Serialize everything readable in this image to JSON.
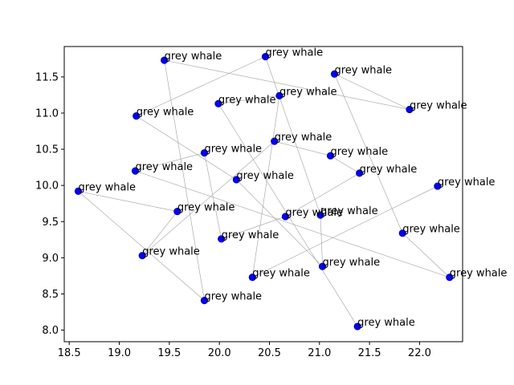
{
  "chart_data": {
    "type": "scatter",
    "title": "",
    "xlabel": "",
    "ylabel": "",
    "xlim": [
      18.45,
      22.43
    ],
    "ylim": [
      7.84,
      11.92
    ],
    "xticks": [
      18.5,
      19.0,
      19.5,
      20.0,
      20.5,
      21.0,
      21.5,
      22.0
    ],
    "xtick_labels": [
      "18.5",
      "19.0",
      "19.5",
      "20.0",
      "20.5",
      "21.0",
      "21.5",
      "22.0"
    ],
    "yticks": [
      8.0,
      8.5,
      9.0,
      9.5,
      10.0,
      10.5,
      11.0,
      11.5
    ],
    "ytick_labels": [
      "8.0",
      "8.5",
      "9.0",
      "9.5",
      "10.0",
      "10.5",
      "11.0",
      "11.5"
    ],
    "grid": false,
    "marker_color": "#0000ff",
    "edge_color": "#0000aa",
    "line_color": "#a0a0a0",
    "points": [
      {
        "x": 19.45,
        "y": 11.73,
        "label": "grey whale"
      },
      {
        "x": 20.46,
        "y": 11.78,
        "label": "grey whale"
      },
      {
        "x": 21.15,
        "y": 11.54,
        "label": "grey whale"
      },
      {
        "x": 20.6,
        "y": 11.24,
        "label": "grey whale"
      },
      {
        "x": 19.99,
        "y": 11.13,
        "label": "grey whale"
      },
      {
        "x": 21.9,
        "y": 11.05,
        "label": "grey whale"
      },
      {
        "x": 19.17,
        "y": 10.96,
        "label": "grey whale"
      },
      {
        "x": 20.55,
        "y": 10.61,
        "label": "grey whale"
      },
      {
        "x": 19.85,
        "y": 10.45,
        "label": "grey whale"
      },
      {
        "x": 21.11,
        "y": 10.41,
        "label": "grey whale"
      },
      {
        "x": 19.16,
        "y": 10.2,
        "label": "grey whale"
      },
      {
        "x": 21.4,
        "y": 10.17,
        "label": "grey whale"
      },
      {
        "x": 20.17,
        "y": 10.08,
        "label": "grey whale"
      },
      {
        "x": 22.18,
        "y": 9.99,
        "label": "grey whale"
      },
      {
        "x": 18.59,
        "y": 9.92,
        "label": "grey whale"
      },
      {
        "x": 19.58,
        "y": 9.64,
        "label": "grey whale"
      },
      {
        "x": 20.66,
        "y": 9.57,
        "label": "grey whale"
      },
      {
        "x": 21.01,
        "y": 9.59,
        "label": "grey whale"
      },
      {
        "x": 21.83,
        "y": 9.34,
        "label": "grey whale"
      },
      {
        "x": 20.02,
        "y": 9.26,
        "label": "grey whale"
      },
      {
        "x": 19.23,
        "y": 9.03,
        "label": "grey whale"
      },
      {
        "x": 21.03,
        "y": 8.88,
        "label": "grey whale"
      },
      {
        "x": 20.33,
        "y": 8.73,
        "label": "grey whale"
      },
      {
        "x": 22.3,
        "y": 8.73,
        "label": "grey whale"
      },
      {
        "x": 19.85,
        "y": 8.41,
        "label": "grey whale"
      },
      {
        "x": 21.38,
        "y": 8.05,
        "label": "grey whale"
      }
    ],
    "connections": [
      [
        0,
        5
      ],
      [
        0,
        24
      ],
      [
        1,
        6
      ],
      [
        1,
        17
      ],
      [
        2,
        5
      ],
      [
        2,
        18
      ],
      [
        3,
        4
      ],
      [
        3,
        22
      ],
      [
        4,
        25
      ],
      [
        6,
        12
      ],
      [
        7,
        9
      ],
      [
        7,
        20
      ],
      [
        8,
        10
      ],
      [
        8,
        19
      ],
      [
        9,
        11
      ],
      [
        10,
        23
      ],
      [
        11,
        16
      ],
      [
        12,
        21
      ],
      [
        13,
        22
      ],
      [
        14,
        15
      ],
      [
        14,
        24
      ],
      [
        15,
        20
      ],
      [
        16,
        19
      ],
      [
        17,
        21
      ],
      [
        18,
        23
      ]
    ]
  }
}
